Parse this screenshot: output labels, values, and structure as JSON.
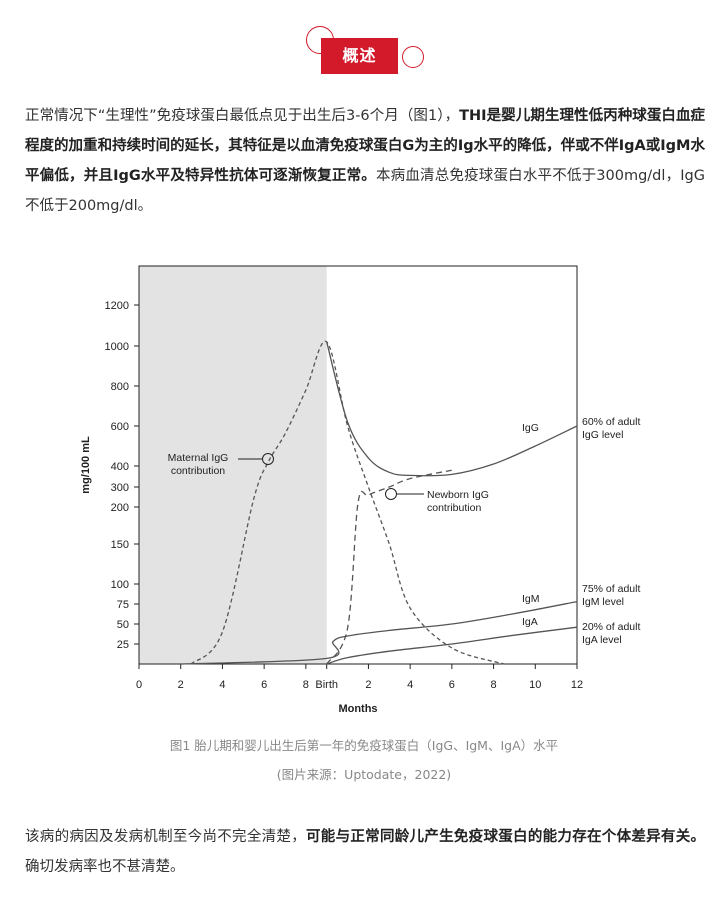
{
  "header": {
    "title": "概述"
  },
  "para1": {
    "t1": "正常情况下“生理性”免疫球蛋白最低点见于出生后3-6个月（图1），",
    "b1": "THI是婴儿期生理性低丙种球蛋白血症程度的加重和持续时间的延长，其特征是以血清免疫球蛋白G为主的Ig水平的降低，伴或不伴IgA或IgM水平偏低，并且IgG水平及特异性抗体可逐渐恢复正常。",
    "t2": "本病血清总免疫球蛋白水平不低于300mg/dl，IgG不低于200mg/dl。"
  },
  "chart_data": {
    "type": "line",
    "ylabel": "mg/100 mL",
    "xlabel": "Months",
    "x_ticks": [
      "0",
      "2",
      "4",
      "6",
      "8",
      "Birth",
      "2",
      "4",
      "6",
      "8",
      "10",
      "12"
    ],
    "y_ticks": [
      "1200",
      "1000",
      "800",
      "600",
      "400",
      "300",
      "200",
      "150",
      "100",
      "75",
      "50",
      "25"
    ],
    "shaded_region": "prenatal months 0–9 (gray)",
    "annotations": {
      "maternal": [
        "Maternal IgG",
        "contribution"
      ],
      "newborn": [
        "Newborn IgG",
        "contribution"
      ],
      "igg_label": "IgG",
      "igm_label": "IgM",
      "iga_label": "IgA",
      "igg_end": [
        "60% of adult",
        "IgG level"
      ],
      "igm_end": [
        "75% of adult",
        "IgM level"
      ],
      "iga_end": [
        "20% of adult",
        "IgA level"
      ]
    },
    "series": [
      {
        "name": "IgG",
        "x": [
          9,
          10,
          11,
          12,
          13,
          15,
          17,
          19,
          21
        ],
        "y": [
          1020,
          620,
          440,
          370,
          355,
          360,
          410,
          500,
          600
        ]
      },
      {
        "name": "Maternal IgG contribution",
        "x": [
          2.5,
          4,
          5.5,
          6.2,
          7,
          8,
          9,
          10,
          11,
          12,
          13,
          15,
          17.5
        ],
        "y": [
          0,
          40,
          240,
          420,
          560,
          780,
          1020,
          600,
          300,
          150,
          70,
          20,
          0
        ]
      },
      {
        "name": "Newborn IgG contribution",
        "x": [
          9,
          10,
          10.5,
          11,
          12,
          13,
          15
        ],
        "y": [
          0,
          45,
          220,
          260,
          300,
          340,
          380
        ]
      },
      {
        "name": "IgM",
        "x": [
          2,
          9,
          9.3,
          10,
          12,
          15,
          18,
          21
        ],
        "y": [
          0,
          7,
          28,
          35,
          42,
          50,
          63,
          78
        ]
      },
      {
        "name": "IgA",
        "x": [
          9,
          10,
          12,
          15,
          18,
          21
        ],
        "y": [
          0,
          8,
          16,
          25,
          36,
          46
        ]
      }
    ]
  },
  "caption1": "图1 胎儿期和婴儿出生后第一年的免疫球蛋白（IgG、IgM、IgA）水平",
  "caption2": "(图片来源：Uptodate，2022)",
  "para2": {
    "t1": "该病的病因及发病机制至今尚不完全清楚，",
    "b1": "可能与正常同龄儿产生免疫球蛋白的能力存在个体差异有关。",
    "t2": "确切发病率也不甚清楚。"
  }
}
